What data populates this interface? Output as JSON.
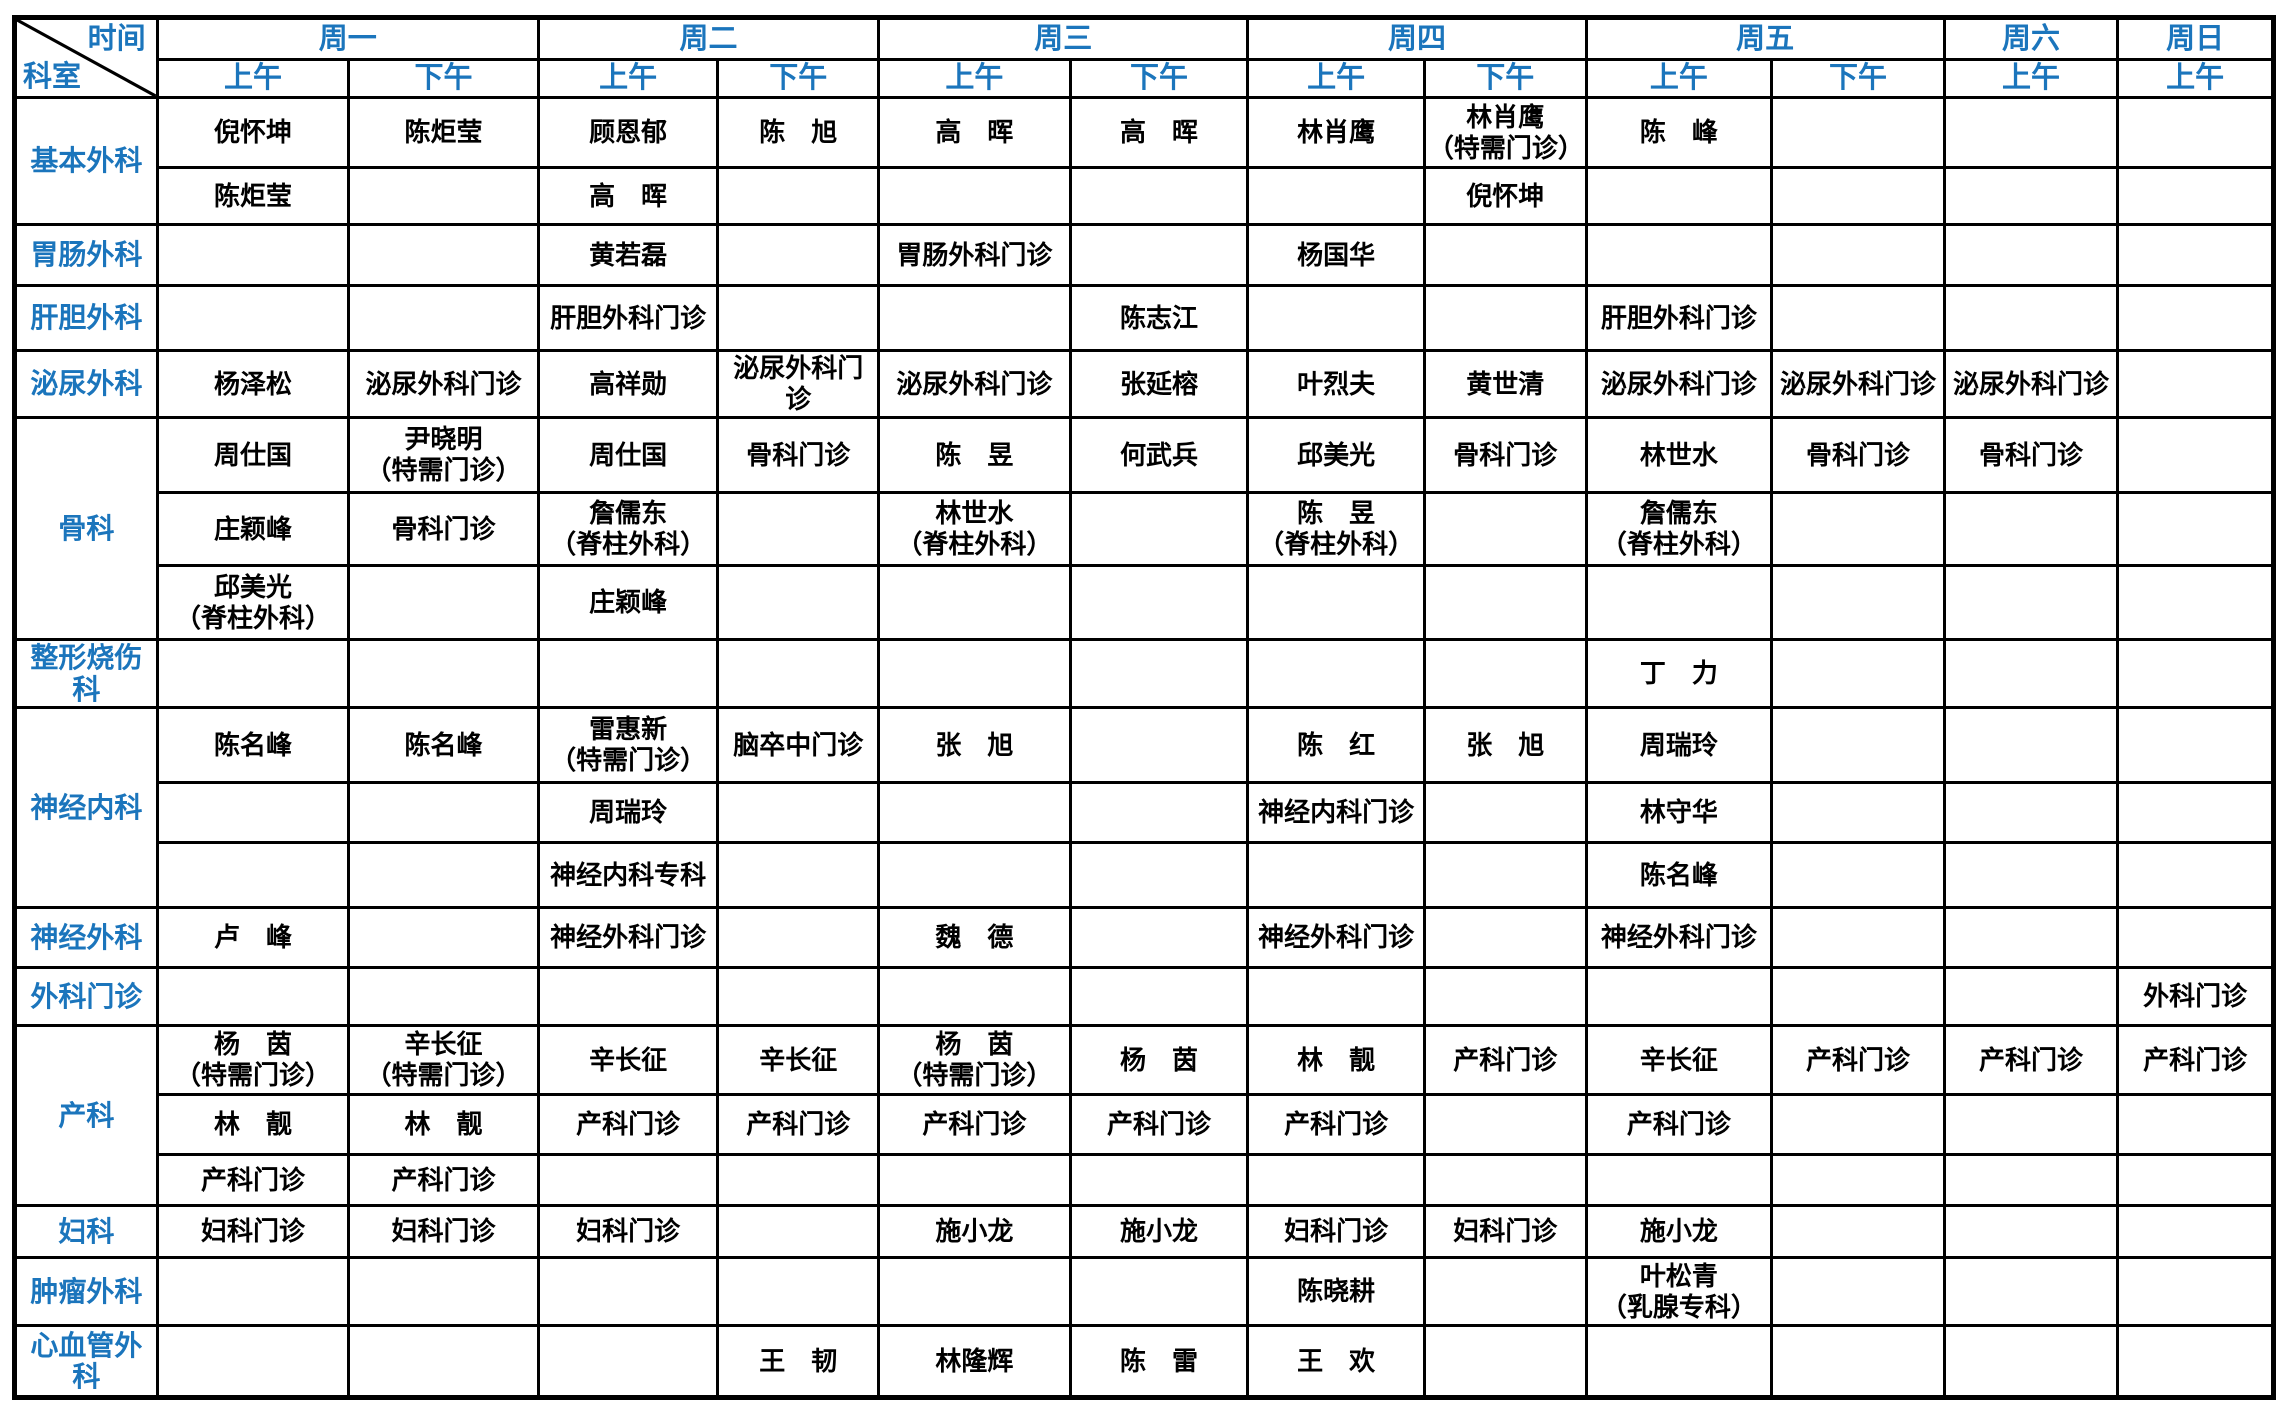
{
  "colors": {
    "header_blue": "#1B75BC",
    "grid_black": "#000000",
    "background": "#FFFFFF"
  },
  "corner": {
    "time_label": "时间",
    "dept_label": "科室"
  },
  "days": [
    {
      "label": "周一",
      "sessions": [
        "上午",
        "下午"
      ]
    },
    {
      "label": "周二",
      "sessions": [
        "上午",
        "下午"
      ]
    },
    {
      "label": "周三",
      "sessions": [
        "上午",
        "下午"
      ]
    },
    {
      "label": "周四",
      "sessions": [
        "上午",
        "下午"
      ]
    },
    {
      "label": "周五",
      "sessions": [
        "上午",
        "下午"
      ]
    },
    {
      "label": "周六",
      "sessions": [
        "上午"
      ]
    },
    {
      "label": "周日",
      "sessions": [
        "上午"
      ]
    }
  ],
  "departments": [
    {
      "name": "基本外科",
      "rows": [
        [
          "倪怀坤",
          "陈炬莹",
          "顾恩郁",
          "陈　旭",
          "高　晖",
          "高　晖",
          "林肖鹰",
          "林肖鹰\n（特需门诊）",
          "陈　峰",
          "",
          "",
          ""
        ],
        [
          "陈炬莹",
          "",
          "高　晖",
          "",
          "",
          "",
          "",
          "倪怀坤",
          "",
          "",
          "",
          ""
        ]
      ]
    },
    {
      "name": "胃肠外科",
      "rows": [
        [
          "",
          "",
          "黄若磊",
          "",
          "胃肠外科门诊",
          "",
          "杨国华",
          "",
          "",
          "",
          "",
          ""
        ]
      ]
    },
    {
      "name": "肝胆外科",
      "rows": [
        [
          "",
          "",
          "肝胆外科门诊",
          "",
          "",
          "陈志江",
          "",
          "",
          "肝胆外科门诊",
          "",
          "",
          ""
        ]
      ]
    },
    {
      "name": "泌尿外科",
      "rows": [
        [
          "杨泽松",
          "泌尿外科门诊",
          "高祥勋",
          "泌尿外科门诊",
          "泌尿外科门诊",
          "张延榕",
          "叶烈夫",
          "黄世清",
          "泌尿外科门诊",
          "泌尿外科门诊",
          "泌尿外科门诊",
          ""
        ]
      ]
    },
    {
      "name": "骨科",
      "rows": [
        [
          "周仕国",
          "尹晓明\n（特需门诊）",
          "周仕国",
          "骨科门诊",
          "陈　昱",
          "何武兵",
          "邱美光",
          "骨科门诊",
          "林世水",
          "骨科门诊",
          "骨科门诊",
          ""
        ],
        [
          "庄颖峰",
          "骨科门诊",
          "詹儒东\n（脊柱外科）",
          "",
          "林世水\n（脊柱外科）",
          "",
          "陈　昱\n（脊柱外科）",
          "",
          "詹儒东\n（脊柱外科）",
          "",
          "",
          ""
        ],
        [
          "邱美光\n（脊柱外科）",
          "",
          "庄颖峰",
          "",
          "",
          "",
          "",
          "",
          "",
          "",
          "",
          ""
        ]
      ]
    },
    {
      "name": "整形烧伤\n科",
      "rows": [
        [
          "",
          "",
          "",
          "",
          "",
          "",
          "",
          "",
          "丁　力",
          "",
          "",
          ""
        ]
      ]
    },
    {
      "name": "神经内科",
      "rows": [
        [
          "陈名峰",
          "陈名峰",
          "雷惠新\n（特需门诊）",
          "脑卒中门诊",
          "张　旭",
          "",
          "陈　红",
          "张　旭",
          "周瑞玲",
          "",
          "",
          ""
        ],
        [
          "",
          "",
          "周瑞玲",
          "",
          "",
          "",
          "神经内科门诊",
          "",
          "林守华",
          "",
          "",
          ""
        ],
        [
          "",
          "",
          "神经内科专科",
          "",
          "",
          "",
          "",
          "",
          "陈名峰",
          "",
          "",
          ""
        ]
      ]
    },
    {
      "name": "神经外科",
      "rows": [
        [
          "卢　峰",
          "",
          "神经外科门诊",
          "",
          "魏　德",
          "",
          "神经外科门诊",
          "",
          "神经外科门诊",
          "",
          "",
          ""
        ]
      ]
    },
    {
      "name": "外科门诊",
      "rows": [
        [
          "",
          "",
          "",
          "",
          "",
          "",
          "",
          "",
          "",
          "",
          "",
          "外科门诊"
        ]
      ]
    },
    {
      "name": "产科",
      "rows": [
        [
          "杨　茵\n（特需门诊）",
          "辛长征\n（特需门诊）",
          "辛长征",
          "辛长征",
          "杨　茵\n（特需门诊）",
          "杨　茵",
          "林　靓",
          "产科门诊",
          "辛长征",
          "产科门诊",
          "产科门诊",
          "产科门诊"
        ],
        [
          "林　靓",
          "林　靓",
          "产科门诊",
          "产科门诊",
          "产科门诊",
          "产科门诊",
          "产科门诊",
          "",
          "产科门诊",
          "",
          "",
          ""
        ],
        [
          "产科门诊",
          "产科门诊",
          "",
          "",
          "",
          "",
          "",
          "",
          "",
          "",
          "",
          ""
        ]
      ]
    },
    {
      "name": "妇科",
      "rows": [
        [
          "妇科门诊",
          "妇科门诊",
          "妇科门诊",
          "",
          "施小龙",
          "施小龙",
          "妇科门诊",
          "妇科门诊",
          "施小龙",
          "",
          "",
          ""
        ]
      ]
    },
    {
      "name": "肿瘤外科",
      "rows": [
        [
          "",
          "",
          "",
          "",
          "",
          "",
          "陈晓耕",
          "",
          "叶松青\n（乳腺专科）",
          "",
          "",
          ""
        ]
      ]
    },
    {
      "name": "心血管外\n科",
      "rows": [
        [
          "",
          "",
          "",
          "王　韧",
          "林隆辉",
          "陈　雷",
          "王　欢",
          "",
          "",
          "",
          "",
          ""
        ]
      ]
    }
  ]
}
